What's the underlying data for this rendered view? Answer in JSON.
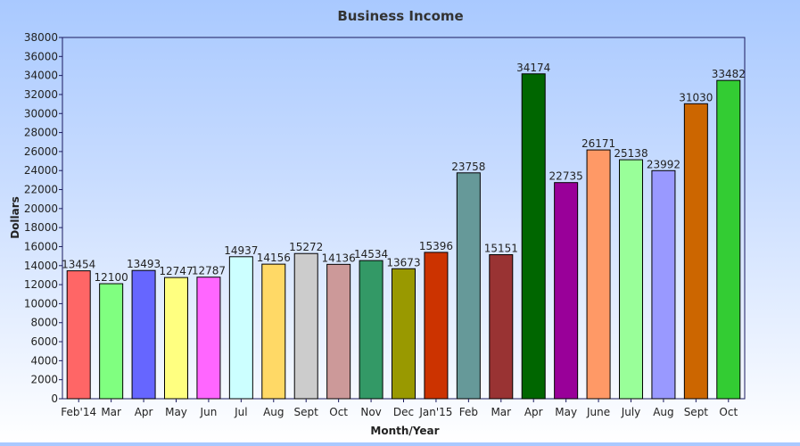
{
  "chart_data": {
    "type": "bar",
    "title": "Business Income",
    "xlabel": "Month/Year",
    "ylabel": "Dollars",
    "ylim": [
      0,
      38000
    ],
    "ytick_step": 2000,
    "grid": false,
    "categories": [
      "Feb'14",
      "Mar",
      "Apr",
      "May",
      "Jun",
      "Jul",
      "Aug",
      "Sept",
      "Oct",
      "Nov",
      "Dec",
      "Jan'15",
      "Feb",
      "Mar",
      "Apr",
      "May",
      "June",
      "July",
      "Aug",
      "Sept",
      "Oct"
    ],
    "values": [
      13454,
      12100,
      13493,
      12747,
      12787,
      14937,
      14156,
      15272,
      14136,
      14534,
      13673,
      15396,
      23758,
      15151,
      34174,
      22735,
      26171,
      25138,
      23992,
      31030,
      33482
    ],
    "colors": [
      "#ff6666",
      "#80ff80",
      "#6666ff",
      "#ffff80",
      "#ff66ff",
      "#ccffff",
      "#ffd966",
      "#cccccc",
      "#cc9999",
      "#339966",
      "#999900",
      "#cc3300",
      "#669999",
      "#993333",
      "#006600",
      "#990099",
      "#ff9966",
      "#99ff99",
      "#9999ff",
      "#cc6600",
      "#33cc33"
    ]
  }
}
